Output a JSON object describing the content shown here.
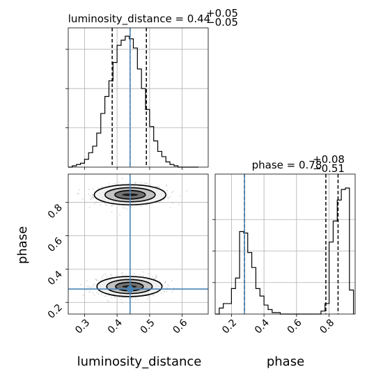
{
  "chart_data": {
    "type": "corner",
    "parameters": [
      "luminosity_distance",
      "phase"
    ],
    "titles": {
      "luminosity_distance": {
        "prefix": "luminosity_distance = 0.44",
        "plus": "+0.05",
        "minus": "−0.05"
      },
      "phase": {
        "prefix": "phase = 0.78",
        "plus": "+0.08",
        "minus": "−0.51"
      }
    },
    "truths": {
      "luminosity_distance": 0.44,
      "phase": 0.28
    },
    "truth_color": "#4682b4",
    "quantiles": {
      "luminosity_distance": [
        0.385,
        0.44,
        0.49
      ],
      "phase": [
        0.28,
        0.78,
        0.855
      ]
    },
    "hist_luminosity_distance": {
      "xlim": [
        0.25,
        0.68
      ],
      "edges": [
        0.25,
        0.2625,
        0.275,
        0.2875,
        0.3,
        0.3125,
        0.325,
        0.3375,
        0.35,
        0.3625,
        0.375,
        0.3875,
        0.4,
        0.4125,
        0.425,
        0.4375,
        0.45,
        0.4625,
        0.475,
        0.4875,
        0.5,
        0.5125,
        0.525,
        0.5375,
        0.55,
        0.5625,
        0.575,
        0.5875,
        0.6,
        0.6125,
        0.625,
        0.6375,
        0.65
      ],
      "counts": [
        0,
        1,
        2,
        3,
        6,
        11,
        16,
        26,
        41,
        54,
        66,
        80,
        93,
        97,
        100,
        98,
        91,
        75,
        60,
        44,
        31,
        20,
        12,
        8,
        4,
        2,
        1,
        0,
        0,
        0,
        0,
        0
      ]
    },
    "hist_phase": {
      "xlim": [
        0.1,
        0.96
      ],
      "edges": [
        0.1,
        0.125,
        0.15,
        0.175,
        0.2,
        0.225,
        0.25,
        0.275,
        0.3,
        0.325,
        0.35,
        0.375,
        0.4,
        0.425,
        0.45,
        0.475,
        0.5,
        0.525,
        0.55,
        0.575,
        0.6,
        0.625,
        0.65,
        0.675,
        0.7,
        0.725,
        0.75,
        0.775,
        0.8,
        0.825,
        0.85,
        0.875,
        0.9,
        0.925,
        0.95
      ],
      "counts": [
        0,
        4,
        7,
        7,
        17,
        24,
        55,
        54,
        41,
        31,
        17,
        12,
        6,
        3,
        1,
        1,
        0,
        0,
        0,
        0,
        0,
        0,
        0,
        0,
        0,
        0,
        2,
        7,
        48,
        62,
        76,
        83,
        84,
        16
      ]
    },
    "joint": {
      "xlabel": "luminosity_distance",
      "ylabel": "phase",
      "xlim": [
        0.25,
        0.68
      ],
      "ylim": [
        0.13,
        0.97
      ],
      "xticks": [
        0.3,
        0.4,
        0.5,
        0.6
      ],
      "yticks": [
        0.2,
        0.4,
        0.6,
        0.8
      ],
      "modes": [
        {
          "x_center": 0.44,
          "y_center": 0.846,
          "x_spread": 0.055,
          "y_spread": 0.03
        },
        {
          "x_center": 0.438,
          "y_center": 0.295,
          "x_spread": 0.05,
          "y_spread": 0.03
        }
      ]
    },
    "phase_xlabel": "phase",
    "phase_xticks": [
      0.2,
      0.4,
      0.6,
      0.8
    ],
    "tick_labels": {
      "luminosity_distance": [
        "0.3",
        "0.4",
        "0.5",
        "0.6"
      ],
      "phase_y": [
        "0.2",
        "0.4",
        "0.6",
        "0.8"
      ],
      "phase_x": [
        "0.2",
        "0.4",
        "0.6",
        "0.8"
      ]
    }
  }
}
